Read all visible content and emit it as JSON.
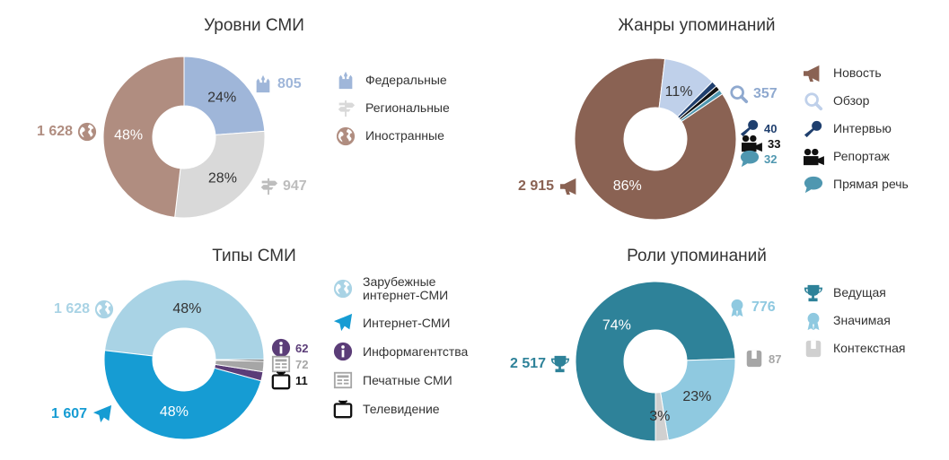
{
  "chart_data": [
    {
      "type": "pie",
      "title": "Уровни СМИ",
      "series": [
        {
          "name": "Федеральные",
          "value": 805,
          "value_label": "805",
          "pct_label": "24%",
          "color": "#9fb6d9",
          "icon": "kremlin-icon"
        },
        {
          "name": "Региональные",
          "value": 947,
          "value_label": "947",
          "pct_label": "28%",
          "color": "#d9d9d9",
          "icon": "signpost-icon"
        },
        {
          "name": "Иностранные",
          "value": 1628,
          "value_label": "1 628",
          "pct_label": "48%",
          "color": "#b08d80",
          "icon": "globe-icon"
        }
      ]
    },
    {
      "type": "pie",
      "title": "Жанры упоминаний",
      "series": [
        {
          "name": "Новость",
          "value": 2915,
          "value_label": "2 915",
          "pct_label": "86%",
          "color": "#8a6253",
          "icon": "megaphone-icon"
        },
        {
          "name": "Обзор",
          "value": 357,
          "value_label": "357",
          "pct_label": "11%",
          "color": "#bfd0ea",
          "icon": "magnifier-icon"
        },
        {
          "name": "Интервью",
          "value": 40,
          "value_label": "40",
          "pct_label": "",
          "color": "#1f3f6e",
          "icon": "microphone-icon"
        },
        {
          "name": "Репортаж",
          "value": 33,
          "value_label": "33",
          "pct_label": "",
          "color": "#111111",
          "icon": "camera-icon"
        },
        {
          "name": "Прямая речь",
          "value": 32,
          "value_label": "32",
          "pct_label": "",
          "color": "#4f97b0",
          "icon": "speech-bubble-icon"
        }
      ]
    },
    {
      "type": "pie",
      "title": "Типы СМИ",
      "series": [
        {
          "name": "Зарубежные интернет-СМИ",
          "lines": [
            "Зарубежные",
            "интернет-СМИ"
          ],
          "value": 1628,
          "value_label": "1 628",
          "pct_label": "48%",
          "color": "#a9d3e5",
          "icon": "globe-icon"
        },
        {
          "name": "Интернет-СМИ",
          "value": 1607,
          "value_label": "1 607",
          "pct_label": "48%",
          "color": "#169cd3",
          "icon": "paper-plane-icon"
        },
        {
          "name": "Информагентства",
          "value": 62,
          "value_label": "62",
          "pct_label": "",
          "color": "#5b3d78",
          "icon": "info-icon"
        },
        {
          "name": "Печатные СМИ",
          "value": 72,
          "value_label": "72",
          "pct_label": "",
          "color": "#a6a6a6",
          "icon": "newspaper-icon"
        },
        {
          "name": "Телевидение",
          "value": 11,
          "value_label": "11",
          "pct_label": "",
          "color": "#111111",
          "icon": "tv-icon"
        }
      ]
    },
    {
      "type": "pie",
      "title": "Роли упоминаний",
      "series": [
        {
          "name": "Ведущая",
          "value": 2517,
          "value_label": "2 517",
          "pct_label": "74%",
          "color": "#2e8299",
          "icon": "trophy-icon"
        },
        {
          "name": "Значимая",
          "value": 776,
          "value_label": "776",
          "pct_label": "23%",
          "color": "#8fc9e0",
          "icon": "medal-icon"
        },
        {
          "name": "Контекстная",
          "value": 87,
          "value_label": "87",
          "pct_label": "3%",
          "color": "#d0d0d0",
          "icon": "tag-icon"
        }
      ]
    }
  ]
}
